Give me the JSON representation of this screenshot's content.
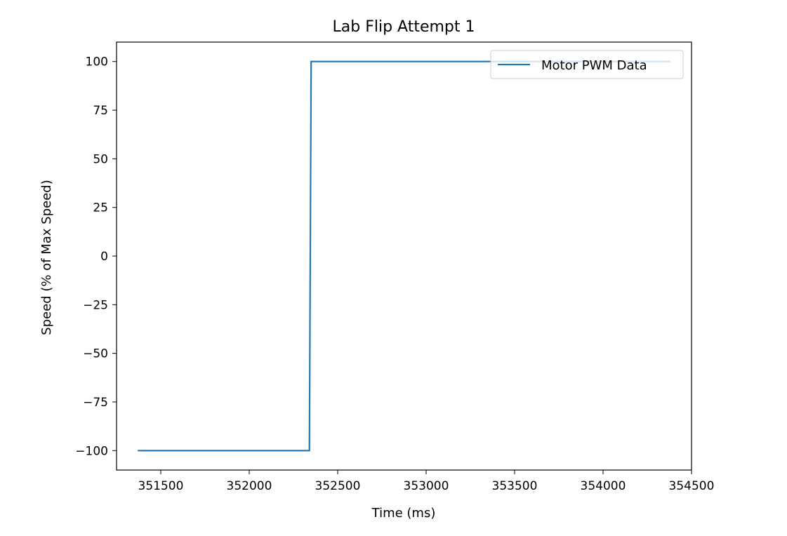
{
  "chart_data": {
    "type": "line",
    "title": "Lab Flip Attempt 1",
    "xlabel": "Time (ms)",
    "ylabel": "Speed (% of Max Speed)",
    "xlim": [
      351250,
      354500
    ],
    "ylim": [
      -110,
      110
    ],
    "xticks": [
      351500,
      352000,
      352500,
      353000,
      353500,
      354000,
      354500
    ],
    "xtick_labels": [
      "351500",
      "352000",
      "352500",
      "353000",
      "353500",
      "354000",
      "354500"
    ],
    "yticks": [
      100,
      75,
      50,
      25,
      0,
      -25,
      -50,
      -75,
      -100
    ],
    "ytick_labels": [
      "100",
      "75",
      "50",
      "25",
      "0",
      "−25",
      "−50",
      "−75",
      "−100"
    ],
    "grid": false,
    "legend": {
      "position": "upper-right",
      "entries": [
        "Motor PWM Data"
      ]
    },
    "series": [
      {
        "name": "Motor PWM Data",
        "color": "#1f77b4",
        "x": [
          351370,
          352340,
          352350,
          354380
        ],
        "y": [
          -100,
          -100,
          100,
          100
        ]
      }
    ]
  }
}
